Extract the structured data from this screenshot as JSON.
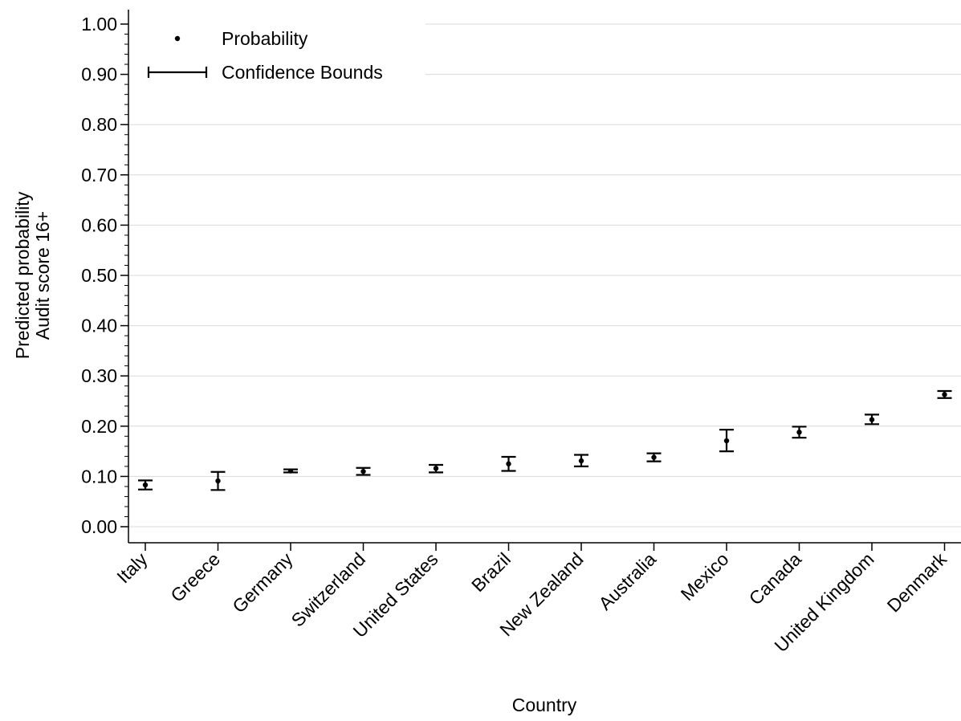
{
  "chart_data": {
    "type": "scatter",
    "title": "",
    "xlabel": "Country",
    "ylabel_lines": [
      "Predicted probability",
      "Audit score 16+"
    ],
    "categories": [
      "Italy",
      "Greece",
      "Germany",
      "Switzerland",
      "United States",
      "Brazil",
      "New Zealand",
      "Australia",
      "Mexico",
      "Canada",
      "United Kingdom",
      "Denmark"
    ],
    "series": [
      {
        "name": "Probability",
        "values": [
          0.083,
          0.091,
          0.111,
          0.11,
          0.116,
          0.125,
          0.131,
          0.138,
          0.171,
          0.188,
          0.213,
          0.263
        ],
        "lower": [
          0.074,
          0.073,
          0.108,
          0.103,
          0.108,
          0.111,
          0.12,
          0.13,
          0.15,
          0.177,
          0.204,
          0.256
        ],
        "upper": [
          0.092,
          0.109,
          0.114,
          0.117,
          0.123,
          0.139,
          0.143,
          0.146,
          0.193,
          0.199,
          0.223,
          0.27
        ]
      }
    ],
    "ylim": [
      0,
      1
    ],
    "yticks": [
      "0.00",
      "0.10",
      "0.20",
      "0.30",
      "0.40",
      "0.50",
      "0.60",
      "0.70",
      "0.80",
      "0.90",
      "1.00"
    ],
    "legend": {
      "position": "top-left",
      "entries": [
        "Probability",
        "Confidence Bounds"
      ]
    },
    "grid": true,
    "colors": {
      "marker": "#000000",
      "grid": "#d9d9d9",
      "axis": "#000000"
    }
  }
}
